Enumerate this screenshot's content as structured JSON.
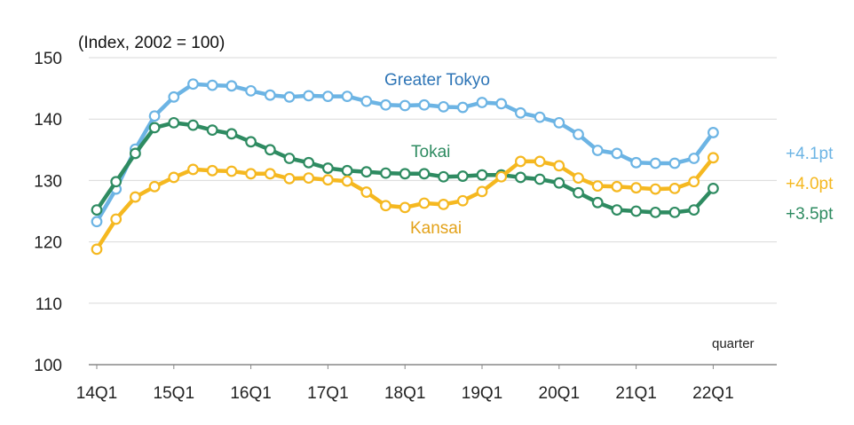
{
  "chart_data": {
    "type": "line",
    "unit_label": "(Index, 2002 = 100)",
    "xlabel": "quarter",
    "ylim": [
      100,
      150
    ],
    "y_ticks": [
      "100",
      "110",
      "120",
      "130",
      "140",
      "150"
    ],
    "x_tick_labels": [
      "14Q1",
      "15Q1",
      "16Q1",
      "17Q1",
      "18Q1",
      "19Q1",
      "20Q1",
      "21Q1",
      "22Q1"
    ],
    "x": [
      "14Q1",
      "14Q2",
      "14Q3",
      "14Q4",
      "15Q1",
      "15Q2",
      "15Q3",
      "15Q4",
      "16Q1",
      "16Q2",
      "16Q3",
      "16Q4",
      "17Q1",
      "17Q2",
      "17Q3",
      "17Q4",
      "18Q1",
      "18Q2",
      "18Q3",
      "18Q4",
      "19Q1",
      "19Q2",
      "19Q3",
      "19Q4",
      "20Q1",
      "20Q2",
      "20Q3",
      "20Q4",
      "21Q1",
      "21Q2",
      "21Q3",
      "21Q4",
      "22Q1"
    ],
    "grid": "horizontal",
    "series": [
      {
        "name": "Greater Tokyo",
        "color": "#6cb4e4",
        "label_color": "#2e75b6",
        "change_label": "+4.1pt",
        "change_color": "#6cb4e4",
        "values": [
          123.3,
          128.6,
          135.1,
          140.5,
          143.6,
          145.7,
          145.5,
          145.4,
          144.6,
          143.9,
          143.6,
          143.8,
          143.7,
          143.7,
          142.9,
          142.3,
          142.2,
          142.3,
          142.0,
          141.9,
          142.7,
          142.5,
          141.0,
          140.3,
          139.4,
          137.5,
          134.9,
          134.4,
          132.9,
          132.8,
          132.8,
          133.6,
          137.8
        ]
      },
      {
        "name": "Tokai",
        "color": "#2e8b61",
        "label_color": "#2e8b61",
        "change_label": "+3.5pt",
        "change_color": "#2e8b61",
        "values": [
          125.2,
          129.8,
          134.4,
          138.6,
          139.4,
          139.0,
          138.2,
          137.6,
          136.3,
          135.0,
          133.6,
          132.9,
          132.0,
          131.6,
          131.4,
          131.2,
          131.1,
          131.1,
          130.6,
          130.7,
          130.9,
          130.9,
          130.5,
          130.2,
          129.6,
          128.0,
          126.4,
          125.2,
          125.0,
          124.8,
          124.8,
          125.2,
          128.7
        ]
      },
      {
        "name": "Kansai",
        "color": "#f5b820",
        "label_color": "#e3a21a",
        "change_label": "+4.0pt",
        "change_color": "#f5b820",
        "values": [
          118.8,
          123.7,
          127.3,
          129.0,
          130.5,
          131.8,
          131.6,
          131.5,
          131.1,
          131.1,
          130.3,
          130.4,
          130.1,
          129.9,
          128.1,
          125.9,
          125.6,
          126.3,
          126.1,
          126.7,
          128.2,
          130.6,
          133.1,
          133.1,
          132.4,
          130.4,
          129.1,
          129.0,
          128.8,
          128.6,
          128.7,
          129.8,
          133.7
        ]
      }
    ]
  }
}
